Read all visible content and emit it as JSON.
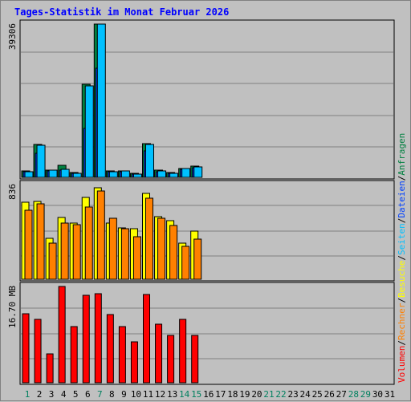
{
  "title": "Tages-Statistik im Monat Februar 2026",
  "legend": [
    {
      "label": "Anfragen",
      "color": "#008040"
    },
    {
      "label": "Dateien",
      "color": "#0040ff"
    },
    {
      "label": "Seiten",
      "color": "#00c0ff"
    },
    {
      "label": "Besuche",
      "color": "#ffff00"
    },
    {
      "label": "Rechner",
      "color": "#ff8000"
    },
    {
      "label": "Volumen",
      "color": "#ff0000"
    }
  ],
  "legend_separator": "/",
  "days": [
    "1",
    "2",
    "3",
    "4",
    "5",
    "6",
    "7",
    "8",
    "9",
    "10",
    "11",
    "12",
    "13",
    "14",
    "15",
    "16",
    "17",
    "18",
    "19",
    "20",
    "21",
    "22",
    "23",
    "24",
    "25",
    "26",
    "27",
    "28",
    "29",
    "30",
    "31"
  ],
  "weekend_days": [
    "1",
    "7",
    "14",
    "15",
    "21",
    "22",
    "28",
    "29"
  ],
  "chart_data": [
    {
      "type": "bar",
      "name": "hits-files-pages",
      "ylabel": "39306",
      "ylim": [
        0,
        39306
      ],
      "series": [
        {
          "name": "Anfragen",
          "color": "#008040",
          "values": [
            1700,
            8400,
            1900,
            3100,
            1200,
            23800,
            39306,
            1600,
            1700,
            1000,
            8700,
            1800,
            1200,
            2300,
            2800,
            null,
            null,
            null,
            null,
            null,
            null,
            null,
            null,
            null,
            null,
            null,
            null,
            null,
            null,
            null,
            null
          ]
        },
        {
          "name": "Dateien",
          "color": "#0040ff",
          "values": [
            1400,
            6200,
            1600,
            1800,
            1000,
            12600,
            27900,
            1400,
            1500,
            800,
            6800,
            1500,
            1100,
            2000,
            2500,
            null,
            null,
            null,
            null,
            null,
            null,
            null,
            null,
            null,
            null,
            null,
            null,
            null,
            null,
            null,
            null
          ]
        },
        {
          "name": "Seiten",
          "color": "#00c0ff",
          "values": [
            1500,
            8200,
            1800,
            2000,
            1100,
            23400,
            39306,
            1500,
            1700,
            900,
            8500,
            1700,
            1100,
            2200,
            2700,
            null,
            null,
            null,
            null,
            null,
            null,
            null,
            null,
            null,
            null,
            null,
            null,
            null,
            null,
            null,
            null
          ]
        }
      ]
    },
    {
      "type": "bar",
      "name": "visits-sites",
      "ylabel": "836",
      "ylim": [
        0,
        836
      ],
      "series": [
        {
          "name": "Besuche",
          "color": "#ffff00",
          "values": [
            674,
            680,
            359,
            540,
            495,
            718,
            803,
            490,
            448,
            440,
            752,
            547,
            513,
            316,
            421,
            null,
            null,
            null,
            null,
            null,
            null,
            null,
            null,
            null,
            null,
            null,
            null,
            null,
            null,
            null,
            null
          ]
        },
        {
          "name": "Rechner",
          "color": "#ff8000",
          "values": [
            602,
            660,
            317,
            495,
            477,
            630,
            775,
            535,
            441,
            370,
            712,
            535,
            468,
            287,
            350,
            null,
            null,
            null,
            null,
            null,
            null,
            null,
            null,
            null,
            null,
            null,
            null,
            null,
            null,
            null,
            null
          ]
        }
      ]
    },
    {
      "type": "bar",
      "name": "volume",
      "ylabel": "16.70 MB",
      "ylim": [
        0,
        16.7
      ],
      "series": [
        {
          "name": "Volumen",
          "color": "#ff0000",
          "values": [
            11.9,
            11.0,
            5.0,
            16.7,
            9.8,
            15.1,
            15.5,
            11.8,
            9.7,
            7.1,
            15.3,
            10.1,
            8.2,
            11.0,
            8.2,
            null,
            null,
            null,
            null,
            null,
            null,
            null,
            null,
            null,
            null,
            null,
            null,
            null,
            null,
            null,
            null
          ]
        }
      ]
    }
  ]
}
